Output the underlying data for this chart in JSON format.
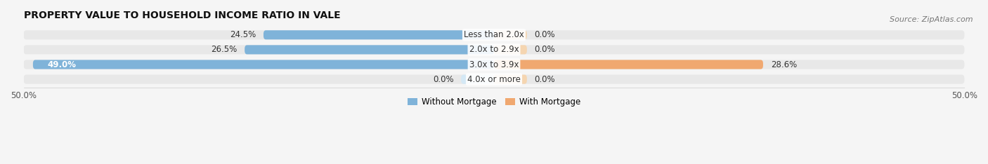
{
  "title": "PROPERTY VALUE TO HOUSEHOLD INCOME RATIO IN VALE",
  "source": "Source: ZipAtlas.com",
  "categories": [
    "Less than 2.0x",
    "2.0x to 2.9x",
    "3.0x to 3.9x",
    "4.0x or more"
  ],
  "without_mortgage": [
    24.5,
    26.5,
    49.0,
    0.0
  ],
  "with_mortgage": [
    0.0,
    0.0,
    28.6,
    0.0
  ],
  "color_without": "#7fb3d9",
  "color_with": "#f0a870",
  "xlim": [
    -50,
    50
  ],
  "xtick_labels": [
    "50.0%",
    "50.0%"
  ],
  "xtick_positions": [
    -50,
    50
  ],
  "bar_height": 0.62,
  "background_bar_color": "#e8e8e8",
  "stub_size": 3.5,
  "legend_without": "Without Mortgage",
  "legend_with": "With Mortgage",
  "title_fontsize": 10,
  "label_fontsize": 8.5,
  "source_fontsize": 8
}
